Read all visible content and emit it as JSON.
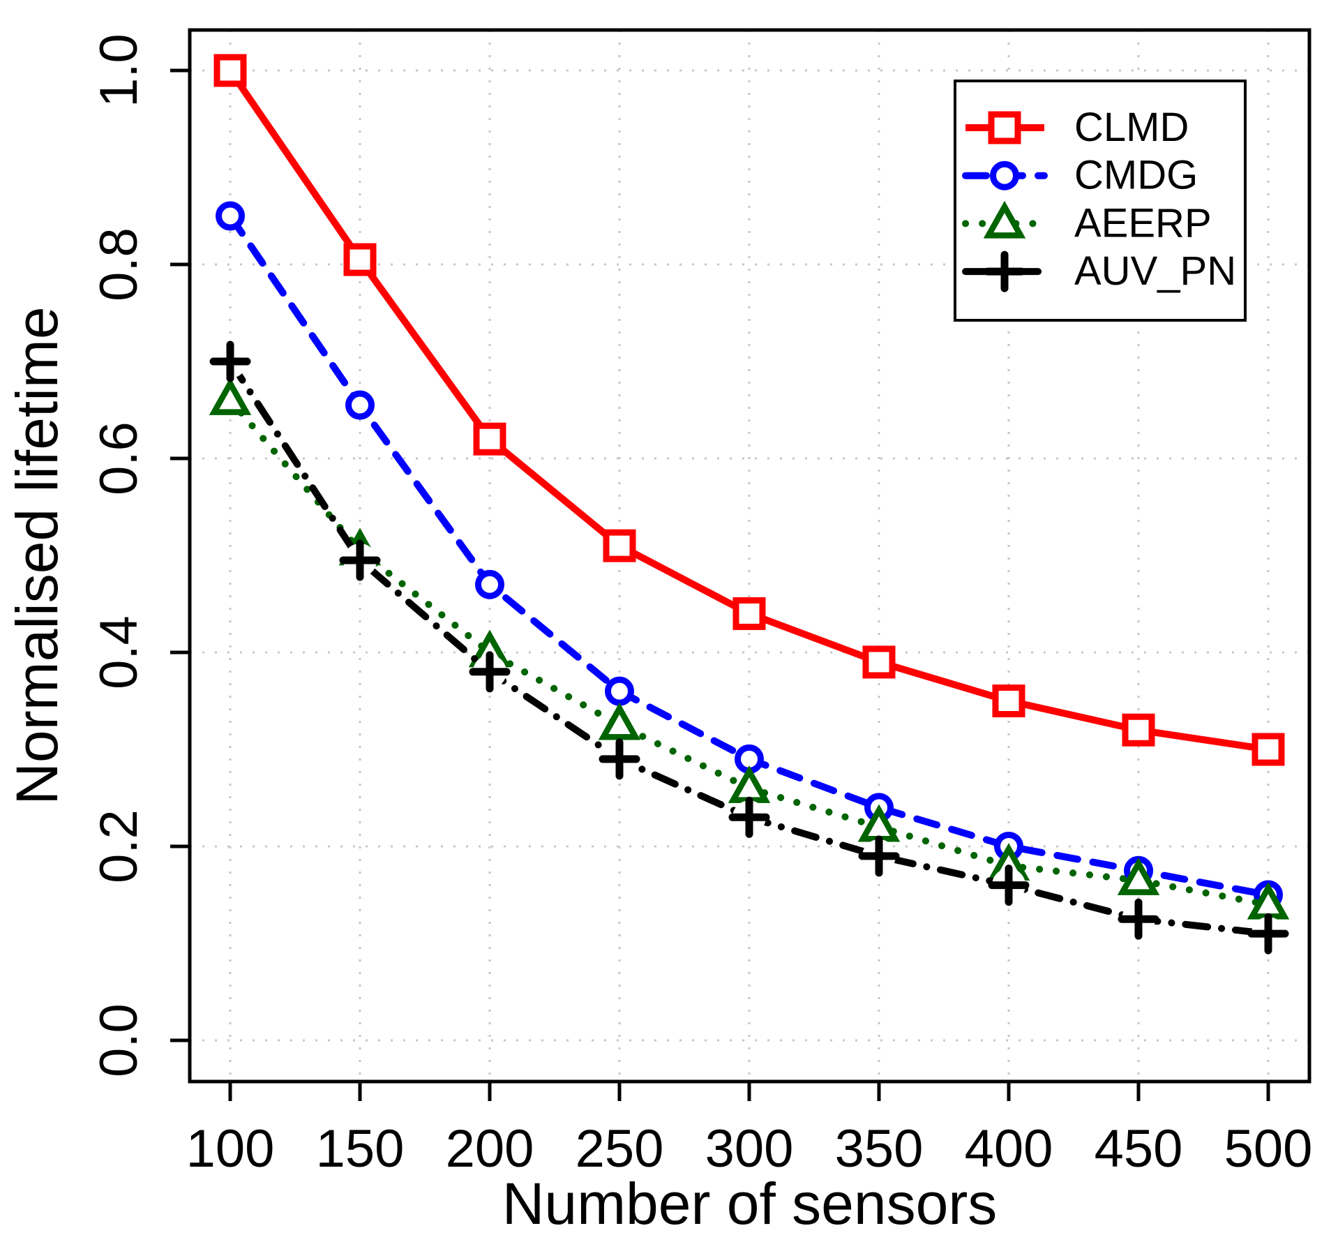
{
  "chart_data": {
    "type": "line",
    "title": "",
    "xlabel": "Number of sensors",
    "ylabel": "Normalised lifetime",
    "x": [
      100,
      150,
      200,
      250,
      300,
      350,
      400,
      450,
      500
    ],
    "x_tick_labels": [
      "100",
      "150",
      "200",
      "250",
      "300",
      "350",
      "400",
      "450",
      "500"
    ],
    "y_ticks": [
      1.0,
      0.8,
      0.6,
      0.4,
      0.2,
      0.0
    ],
    "y_tick_labels": [
      "1.0",
      "0.8",
      "0.6",
      "0.4",
      "0.2",
      "0.0"
    ],
    "xlim": [
      84,
      516
    ],
    "ylim": [
      0,
      1.04
    ],
    "grid": {
      "style": "dotted",
      "color": "#c6c6c6",
      "both_axes": true
    },
    "legend": {
      "position": "top-right",
      "entries": [
        "CLMD",
        "CMDG",
        "AEERP",
        "AUV_PN"
      ]
    },
    "series": [
      {
        "name": "CLMD",
        "color": "#ff0000",
        "marker": "square",
        "linestyle": "solid",
        "values": [
          1.0,
          0.805,
          0.62,
          0.51,
          0.44,
          0.39,
          0.35,
          0.32,
          0.3
        ]
      },
      {
        "name": "CMDG",
        "color": "#0000ff",
        "marker": "circle",
        "linestyle": "dashed",
        "values": [
          0.85,
          0.655,
          0.47,
          0.36,
          0.29,
          0.24,
          0.2,
          0.175,
          0.15
        ]
      },
      {
        "name": "AEERP",
        "color": "#006400",
        "marker": "triangle",
        "linestyle": "dotted",
        "values": [
          0.66,
          0.505,
          0.4,
          0.325,
          0.26,
          0.22,
          0.18,
          0.165,
          0.14
        ]
      },
      {
        "name": "AUV_PN",
        "color": "#000000",
        "marker": "plus",
        "linestyle": "dashdot",
        "values": [
          0.7,
          0.495,
          0.38,
          0.29,
          0.23,
          0.19,
          0.16,
          0.125,
          0.11
        ]
      }
    ],
    "colors": {
      "axis": "#000000",
      "background": "#ffffff",
      "grid": "#c6c6c6"
    }
  }
}
